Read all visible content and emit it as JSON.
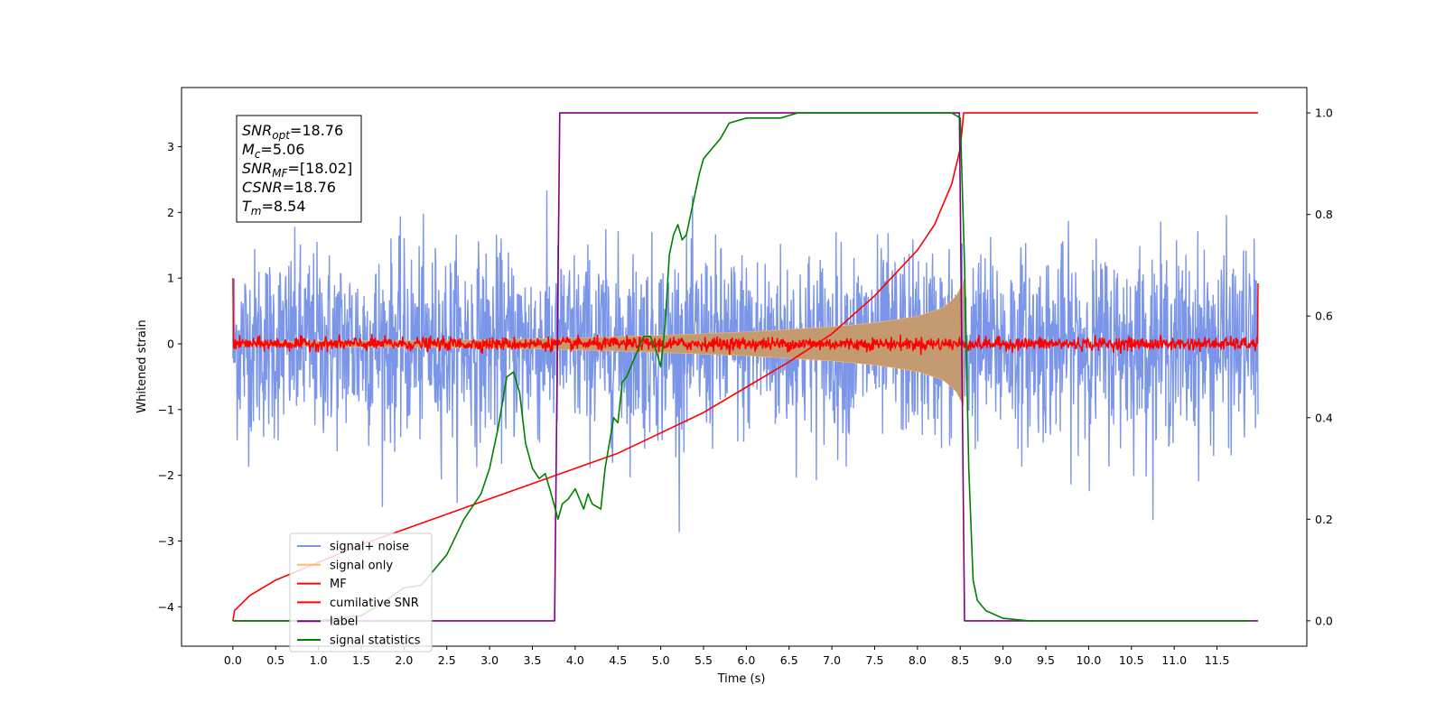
{
  "chart_data": {
    "type": "line",
    "title": "",
    "xlabel": "Time (s)",
    "ylabel": "Whitened strain",
    "xlim": [
      -0.6,
      12.55
    ],
    "ylim": [
      -4.6,
      3.9
    ],
    "y2lim": [
      -0.05,
      1.05
    ],
    "x_ticks": [
      0.0,
      0.5,
      1.0,
      1.5,
      2.0,
      2.5,
      3.0,
      3.5,
      4.0,
      4.5,
      5.0,
      5.5,
      6.0,
      6.5,
      7.0,
      7.5,
      8.0,
      8.5,
      9.0,
      9.5,
      10.0,
      10.5,
      11.0,
      11.5
    ],
    "x_tick_labels": [
      "0.0",
      "0.5",
      "1.0",
      "1.5",
      "2.0",
      "2.5",
      "3.0",
      "3.5",
      "4.0",
      "4.5",
      "5.0",
      "5.5",
      "6.0",
      "6.5",
      "7.0",
      "7.5",
      "8.0",
      "8.5",
      "9.0",
      "9.5",
      "10.0",
      "10.5",
      "11.0",
      "11.5"
    ],
    "y_ticks": [
      -4,
      -3,
      -2,
      -1,
      0,
      1,
      2,
      3
    ],
    "y_tick_labels": [
      "−4",
      "−3",
      "−2",
      "−1",
      "0",
      "1",
      "2",
      "3"
    ],
    "y2_ticks": [
      0.0,
      0.2,
      0.4,
      0.6,
      0.8,
      1.0
    ],
    "y2_tick_labels": [
      "0.0",
      "0.2",
      "0.4",
      "0.6",
      "0.8",
      "1.0"
    ],
    "grid": false,
    "legend_placement": "lower-left",
    "annotation": {
      "lines": [
        {
          "base": "SNR",
          "sub": "opt",
          "value": "=18.76"
        },
        {
          "base": "M",
          "sub": "c",
          "value": "=5.06"
        },
        {
          "base": "SNR",
          "sub": "MF",
          "value": "=[18.02]"
        },
        {
          "base": "CSNR",
          "sub": "",
          "value": "=18.76"
        },
        {
          "base": "T",
          "sub": "m",
          "value": "=8.54"
        }
      ]
    },
    "series": [
      {
        "name": "signal+ noise",
        "color": "#7b96e8",
        "axis": "left",
        "kind": "noise",
        "x_range": [
          0.0,
          11.98
        ],
        "typical_amplitude": 1.15,
        "peak_range": [
          -3.0,
          2.7
        ]
      },
      {
        "name": "signal only",
        "color": "#ffb870",
        "axis": "left",
        "kind": "chirp_envelope",
        "envelope": {
          "x": [
            0.0,
            1.0,
            2.0,
            3.0,
            4.0,
            5.0,
            6.0,
            7.0,
            7.5,
            8.0,
            8.3,
            8.45,
            8.54
          ],
          "half_width": [
            0.03,
            0.04,
            0.05,
            0.06,
            0.09,
            0.13,
            0.18,
            0.26,
            0.32,
            0.42,
            0.55,
            0.72,
            0.95
          ]
        }
      },
      {
        "name": "MF",
        "color": "#ff0000",
        "axis": "left",
        "kind": "matched_filter",
        "x_range": [
          0.0,
          11.98
        ],
        "start_value": 1.0,
        "end_value": 0.92,
        "noise_level": 0.05
      },
      {
        "name": "cumilative SNR",
        "color": "#ff0000",
        "axis": "right",
        "x": [
          0.0,
          0.02,
          0.2,
          0.5,
          1.0,
          1.5,
          2.0,
          2.5,
          3.0,
          3.5,
          4.0,
          4.5,
          5.0,
          5.5,
          6.0,
          6.5,
          7.0,
          7.5,
          8.0,
          8.2,
          8.4,
          8.5,
          8.54,
          11.98
        ],
        "y": [
          0.0,
          0.02,
          0.05,
          0.08,
          0.115,
          0.15,
          0.18,
          0.21,
          0.24,
          0.27,
          0.3,
          0.33,
          0.37,
          0.41,
          0.46,
          0.51,
          0.565,
          0.64,
          0.73,
          0.78,
          0.86,
          0.93,
          1.0,
          1.0
        ]
      },
      {
        "name": "label",
        "color": "#800080",
        "axis": "right",
        "x": [
          0.0,
          3.76,
          3.82,
          8.49,
          8.55,
          11.98
        ],
        "y": [
          0.0,
          0.0,
          1.0,
          1.0,
          0.0,
          0.0
        ]
      },
      {
        "name": "signal statistics",
        "color": "#008000",
        "axis": "right",
        "x": [
          0.0,
          1.0,
          1.5,
          1.7,
          2.0,
          2.2,
          2.5,
          2.7,
          2.9,
          3.0,
          3.1,
          3.2,
          3.28,
          3.35,
          3.42,
          3.5,
          3.58,
          3.65,
          3.72,
          3.8,
          3.85,
          3.92,
          4.0,
          4.1,
          4.15,
          4.2,
          4.3,
          4.35,
          4.45,
          4.5,
          4.55,
          4.6,
          4.7,
          4.8,
          4.88,
          4.95,
          5.0,
          5.05,
          5.1,
          5.15,
          5.2,
          5.25,
          5.3,
          5.4,
          5.45,
          5.5,
          5.6,
          5.7,
          5.8,
          6.0,
          6.4,
          6.6,
          7.0,
          7.5,
          8.0,
          8.4,
          8.5,
          8.55,
          8.6,
          8.65,
          8.7,
          8.8,
          9.0,
          9.3,
          10.0,
          11.0,
          11.9
        ],
        "y": [
          0.0,
          0.0,
          0.01,
          0.03,
          0.065,
          0.07,
          0.13,
          0.2,
          0.25,
          0.3,
          0.38,
          0.48,
          0.49,
          0.45,
          0.35,
          0.3,
          0.28,
          0.29,
          0.25,
          0.2,
          0.23,
          0.24,
          0.26,
          0.22,
          0.25,
          0.23,
          0.22,
          0.3,
          0.4,
          0.39,
          0.47,
          0.48,
          0.52,
          0.56,
          0.56,
          0.53,
          0.5,
          0.58,
          0.72,
          0.76,
          0.78,
          0.75,
          0.76,
          0.84,
          0.88,
          0.91,
          0.93,
          0.95,
          0.98,
          0.99,
          0.99,
          1.0,
          1.0,
          1.0,
          1.0,
          1.0,
          0.99,
          0.7,
          0.3,
          0.08,
          0.04,
          0.02,
          0.005,
          0.0,
          0.0,
          0.0,
          0.0
        ]
      }
    ]
  }
}
